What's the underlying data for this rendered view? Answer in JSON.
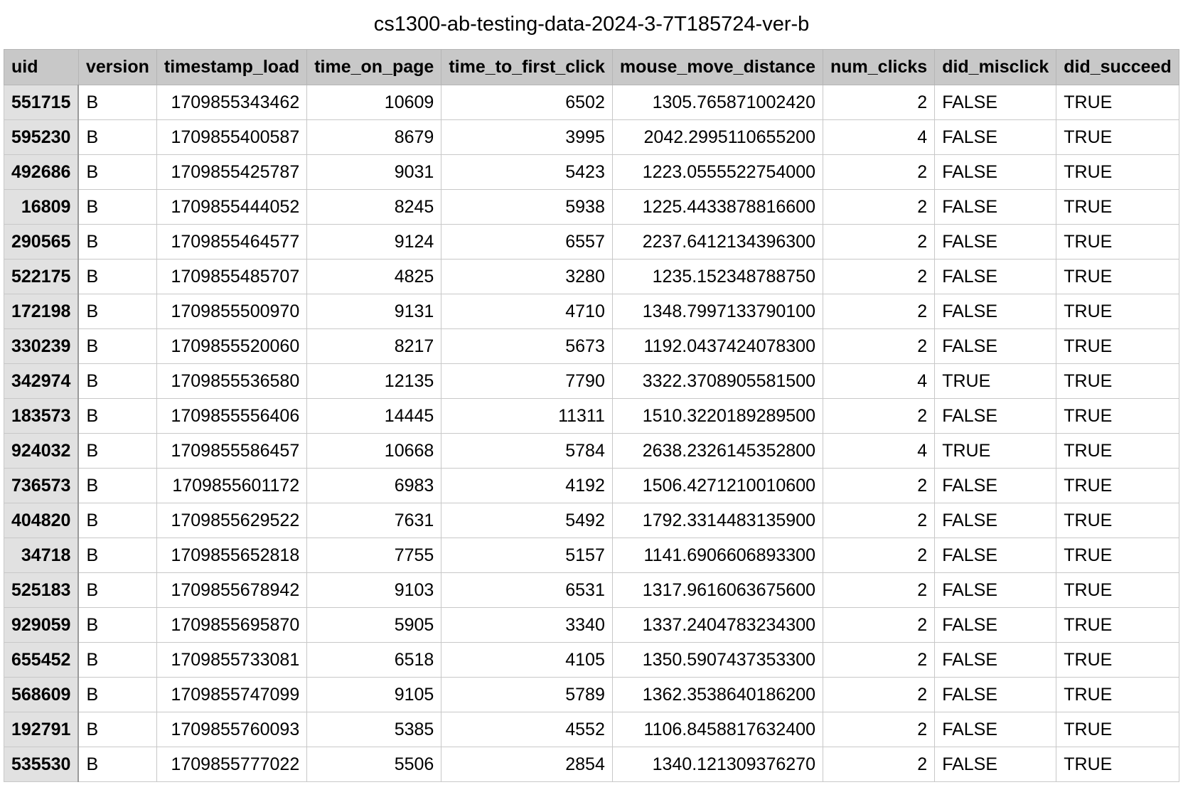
{
  "title": "cs1300-ab-testing-data-2024-3-7T185724-ver-b",
  "columns": [
    "uid",
    "version",
    "timestamp_load",
    "time_on_page",
    "time_to_first_click",
    "mouse_move_distance",
    "num_clicks",
    "did_misclick",
    "did_succeed"
  ],
  "rows": [
    [
      "551715",
      "B",
      "1709855343462",
      "10609",
      "6502",
      "1305.765871002420",
      "2",
      "FALSE",
      "TRUE"
    ],
    [
      "595230",
      "B",
      "1709855400587",
      "8679",
      "3995",
      "2042.2995110655200",
      "4",
      "FALSE",
      "TRUE"
    ],
    [
      "492686",
      "B",
      "1709855425787",
      "9031",
      "5423",
      "1223.0555522754000",
      "2",
      "FALSE",
      "TRUE"
    ],
    [
      "16809",
      "B",
      "1709855444052",
      "8245",
      "5938",
      "1225.4433878816600",
      "2",
      "FALSE",
      "TRUE"
    ],
    [
      "290565",
      "B",
      "1709855464577",
      "9124",
      "6557",
      "2237.6412134396300",
      "2",
      "FALSE",
      "TRUE"
    ],
    [
      "522175",
      "B",
      "1709855485707",
      "4825",
      "3280",
      "1235.152348788750",
      "2",
      "FALSE",
      "TRUE"
    ],
    [
      "172198",
      "B",
      "1709855500970",
      "9131",
      "4710",
      "1348.7997133790100",
      "2",
      "FALSE",
      "TRUE"
    ],
    [
      "330239",
      "B",
      "1709855520060",
      "8217",
      "5673",
      "1192.0437424078300",
      "2",
      "FALSE",
      "TRUE"
    ],
    [
      "342974",
      "B",
      "1709855536580",
      "12135",
      "7790",
      "3322.3708905581500",
      "4",
      "TRUE",
      "TRUE"
    ],
    [
      "183573",
      "B",
      "1709855556406",
      "14445",
      "11311",
      "1510.3220189289500",
      "2",
      "FALSE",
      "TRUE"
    ],
    [
      "924032",
      "B",
      "1709855586457",
      "10668",
      "5784",
      "2638.2326145352800",
      "4",
      "TRUE",
      "TRUE"
    ],
    [
      "736573",
      "B",
      "1709855601172",
      "6983",
      "4192",
      "1506.4271210010600",
      "2",
      "FALSE",
      "TRUE"
    ],
    [
      "404820",
      "B",
      "1709855629522",
      "7631",
      "5492",
      "1792.3314483135900",
      "2",
      "FALSE",
      "TRUE"
    ],
    [
      "34718",
      "B",
      "1709855652818",
      "7755",
      "5157",
      "1141.6906606893300",
      "2",
      "FALSE",
      "TRUE"
    ],
    [
      "525183",
      "B",
      "1709855678942",
      "9103",
      "6531",
      "1317.9616063675600",
      "2",
      "FALSE",
      "TRUE"
    ],
    [
      "929059",
      "B",
      "1709855695870",
      "5905",
      "3340",
      "1337.2404783234300",
      "2",
      "FALSE",
      "TRUE"
    ],
    [
      "655452",
      "B",
      "1709855733081",
      "6518",
      "4105",
      "1350.5907437353300",
      "2",
      "FALSE",
      "TRUE"
    ],
    [
      "568609",
      "B",
      "1709855747099",
      "9105",
      "5789",
      "1362.3538640186200",
      "2",
      "FALSE",
      "TRUE"
    ],
    [
      "192791",
      "B",
      "1709855760093",
      "5385",
      "4552",
      "1106.8458817632400",
      "2",
      "FALSE",
      "TRUE"
    ],
    [
      "535530",
      "B",
      "1709855777022",
      "5506",
      "2854",
      "1340.121309376270",
      "2",
      "FALSE",
      "TRUE"
    ]
  ]
}
